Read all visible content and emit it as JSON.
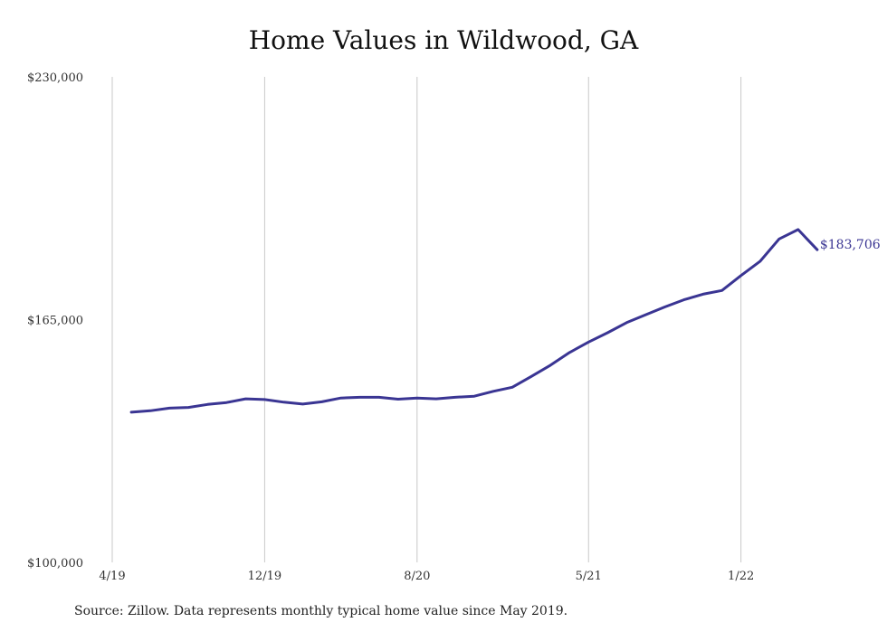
{
  "chart_data": {
    "type": "line",
    "title": "Home Values in Wildwood, GA",
    "xlabel": "",
    "ylabel": "",
    "ylim": [
      100000,
      230000
    ],
    "y_ticks": [
      "$230,000",
      "$165,000",
      "$100,000"
    ],
    "y_tick_values": [
      230000,
      165000,
      100000
    ],
    "x_ticks": [
      "4/19",
      "12/19",
      "8/20",
      "5/21",
      "1/22"
    ],
    "x_tick_dates": [
      "2019-04",
      "2019-12",
      "2020-08",
      "2021-05",
      "2022-01"
    ],
    "grid": "vertical",
    "line_color": "#3a3593",
    "end_label": "$183,706",
    "series": [
      {
        "x": [
          "2019-05",
          "2019-06",
          "2019-07",
          "2019-08",
          "2019-09",
          "2019-10",
          "2019-11",
          "2019-12",
          "2020-01",
          "2020-02",
          "2020-03",
          "2020-04",
          "2020-05",
          "2020-06",
          "2020-07",
          "2020-08",
          "2020-09",
          "2020-10",
          "2020-11",
          "2020-12",
          "2021-01",
          "2021-02",
          "2021-03",
          "2021-04",
          "2021-05",
          "2021-06",
          "2021-07",
          "2021-08",
          "2021-09",
          "2021-10",
          "2021-11",
          "2021-12",
          "2022-01",
          "2022-02",
          "2022-03",
          "2022-04",
          "2022-05"
        ],
        "values": [
          140200,
          140600,
          141300,
          141500,
          142300,
          142800,
          143800,
          143600,
          142900,
          142400,
          143000,
          144000,
          144200,
          144200,
          143700,
          144000,
          143800,
          144200,
          144500,
          145800,
          146900,
          149800,
          152800,
          156200,
          159000,
          161500,
          164200,
          166300,
          168400,
          170300,
          171800,
          172800,
          176800,
          180600,
          186600,
          189100,
          183706
        ]
      }
    ]
  },
  "source_note": "Source: Zillow. Data represents monthly typical home value since May 2019."
}
